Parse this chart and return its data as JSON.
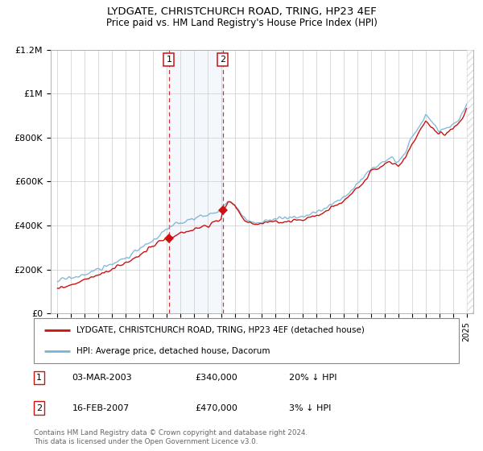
{
  "title": "LYDGATE, CHRISTCHURCH ROAD, TRING, HP23 4EF",
  "subtitle": "Price paid vs. HM Land Registry's House Price Index (HPI)",
  "legend_line1": "LYDGATE, CHRISTCHURCH ROAD, TRING, HP23 4EF (detached house)",
  "legend_line2": "HPI: Average price, detached house, Dacorum",
  "footer": "Contains HM Land Registry data © Crown copyright and database right 2024.\nThis data is licensed under the Open Government Licence v3.0.",
  "ann1_label": "1",
  "ann1_date": "03-MAR-2003",
  "ann1_price": "£340,000",
  "ann1_hpi": "20% ↓ HPI",
  "ann1_x": 2003.17,
  "ann1_y": 340000,
  "ann2_label": "2",
  "ann2_date": "16-FEB-2007",
  "ann2_price": "£470,000",
  "ann2_hpi": "3% ↓ HPI",
  "ann2_x": 2007.12,
  "ann2_y": 470000,
  "hpi_color": "#7ab3d4",
  "price_color": "#cc1111",
  "grid_color": "#cccccc",
  "ylim": [
    0,
    1200000
  ],
  "xlim": [
    1994.5,
    2025.5
  ],
  "yticks": [
    0,
    200000,
    400000,
    600000,
    800000,
    1000000,
    1200000
  ],
  "ytick_labels": [
    "£0",
    "£200K",
    "£400K",
    "£600K",
    "£800K",
    "£1M",
    "£1.2M"
  ],
  "xticks": [
    1995,
    1996,
    1997,
    1998,
    1999,
    2000,
    2001,
    2002,
    2003,
    2004,
    2005,
    2006,
    2007,
    2008,
    2009,
    2010,
    2011,
    2012,
    2013,
    2014,
    2015,
    2016,
    2017,
    2018,
    2019,
    2020,
    2021,
    2022,
    2023,
    2024,
    2025
  ]
}
